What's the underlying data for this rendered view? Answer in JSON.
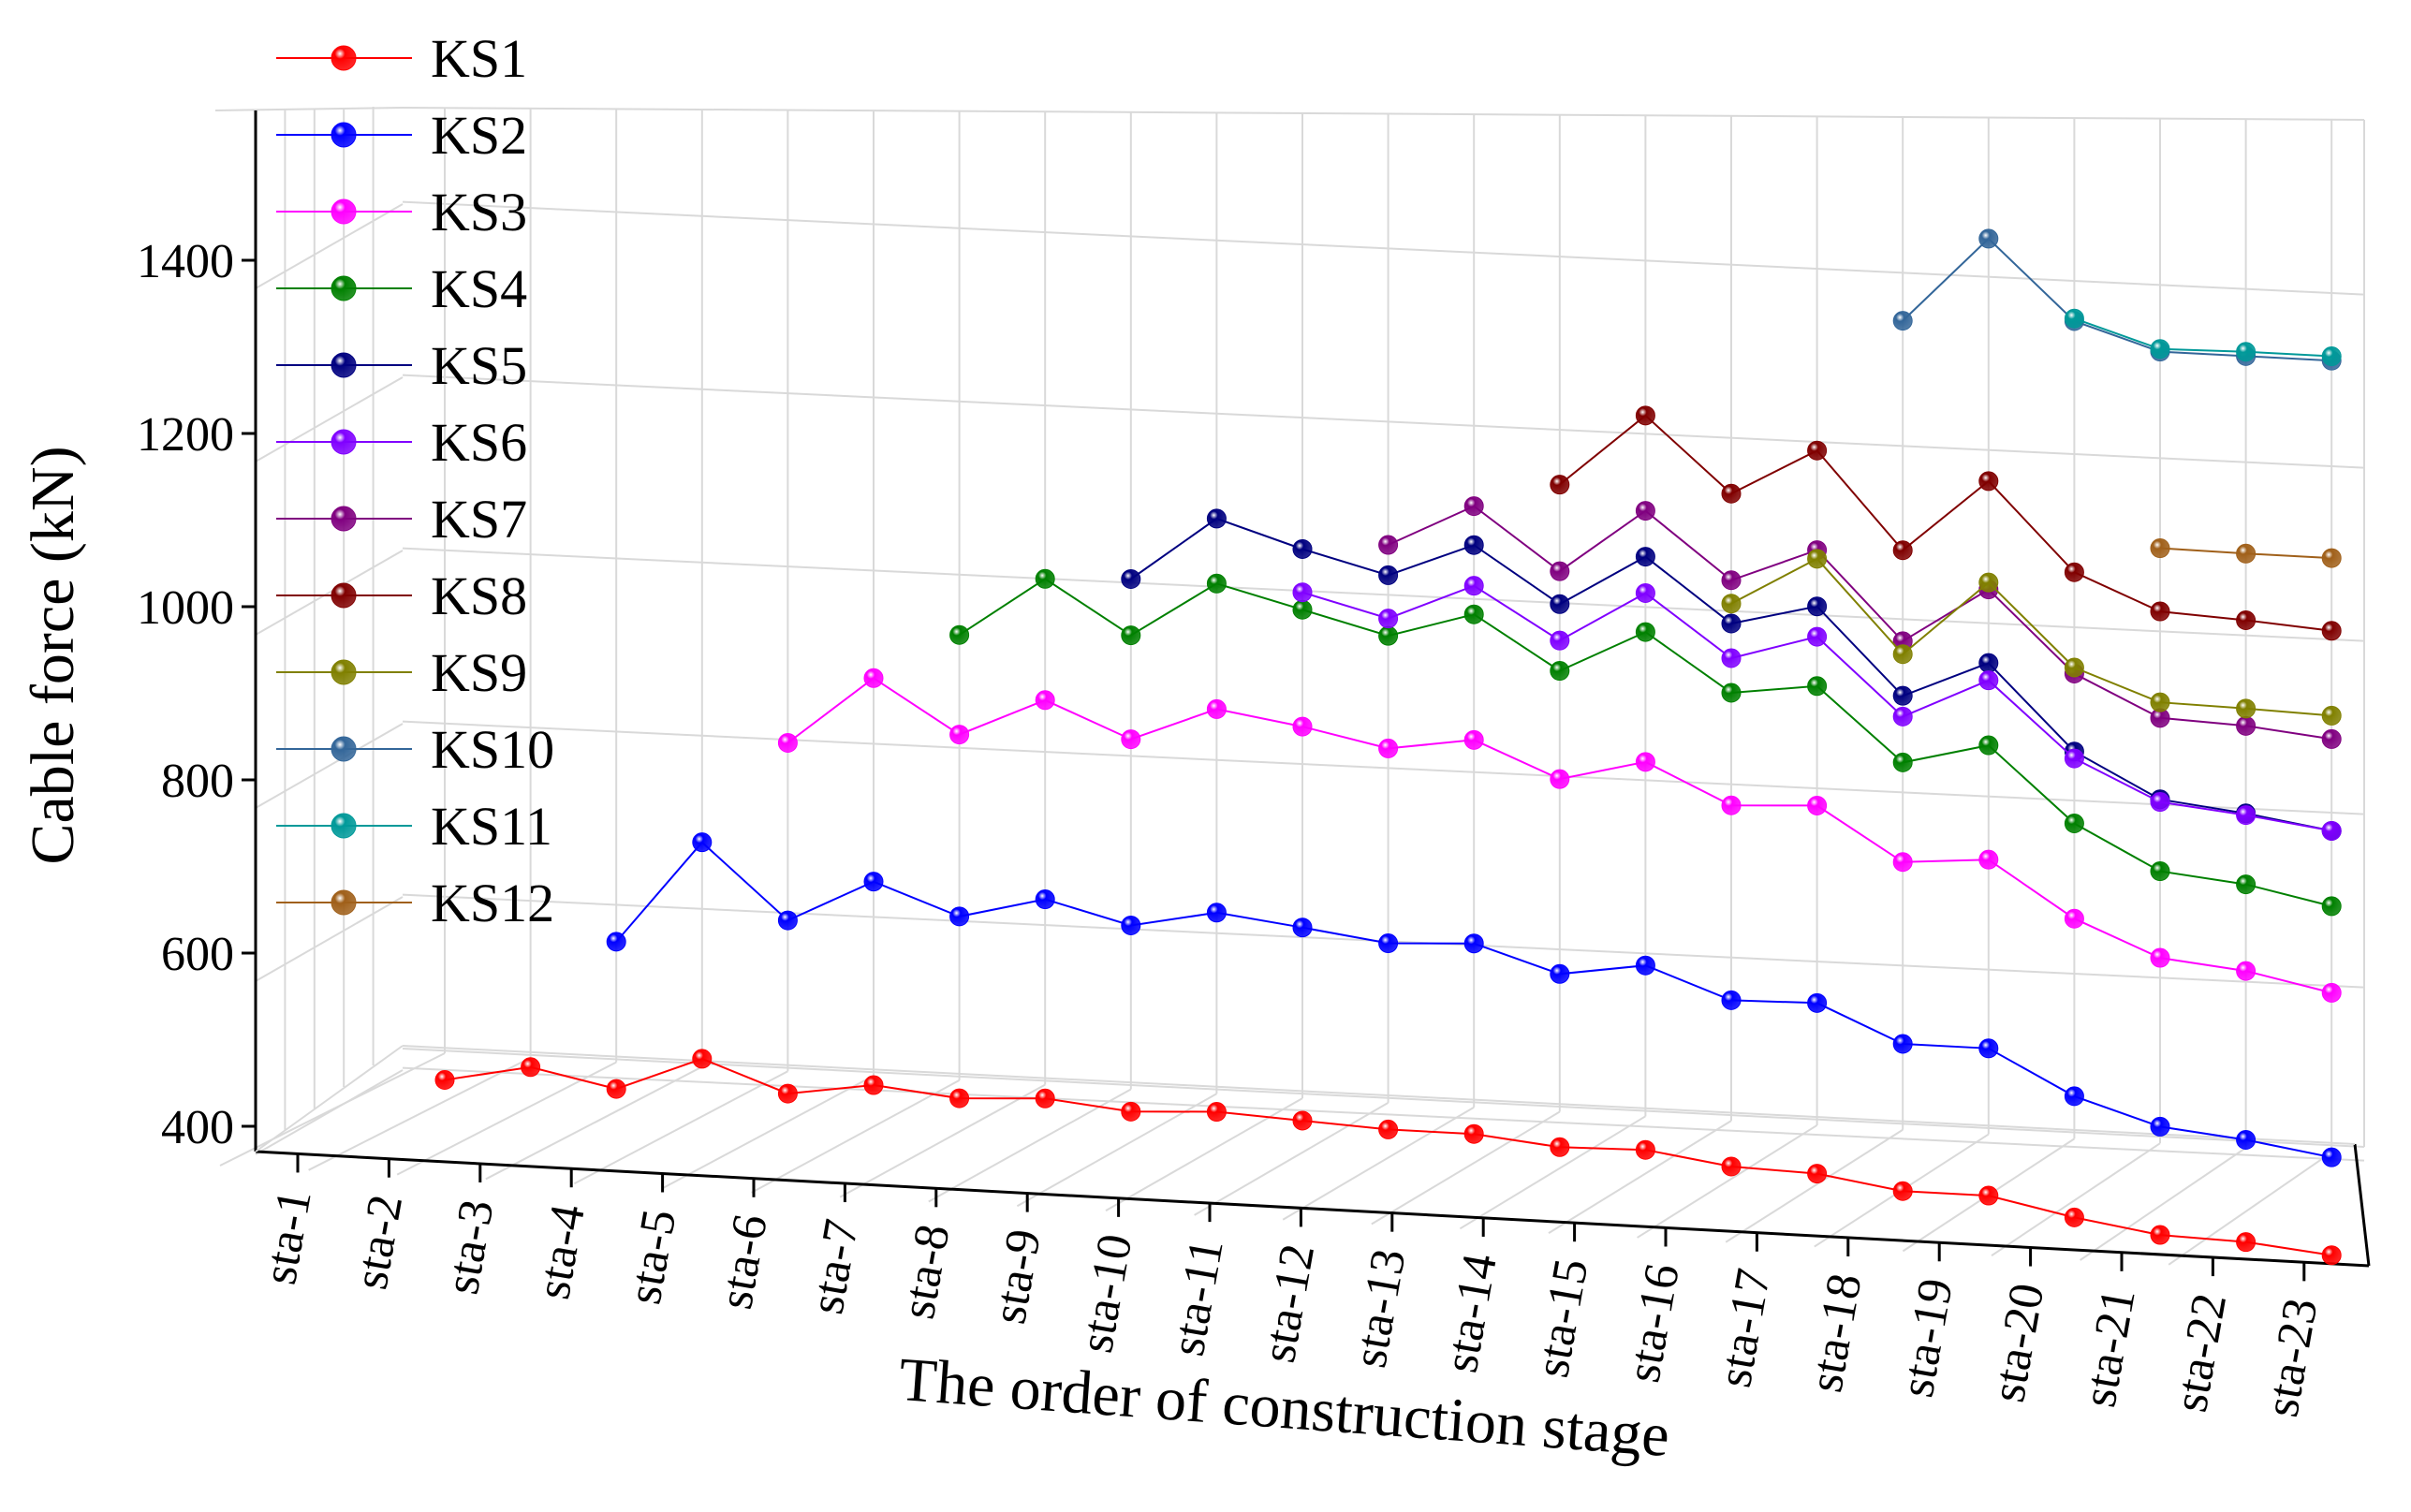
{
  "chart_data": {
    "type": "line",
    "title": "",
    "xlabel": "The order of construction stage",
    "ylabel": "Cable force (kN)",
    "ylim": [
      400,
      1500
    ],
    "yticks": [
      400,
      600,
      800,
      1000,
      1200,
      1400
    ],
    "grid": true,
    "legend_position": "top-left",
    "categories": [
      "sta-1",
      "sta-2",
      "sta-3",
      "sta-4",
      "sta-5",
      "sta-6",
      "sta-7",
      "sta-8",
      "sta-9",
      "sta-10",
      "sta-11",
      "sta-12",
      "sta-13",
      "sta-14",
      "sta-15",
      "sta-16",
      "sta-17",
      "sta-18",
      "sta-19",
      "sta-20",
      "sta-21",
      "sta-22",
      "sta-23"
    ],
    "series": [
      {
        "name": "KS1",
        "color": "#ff0000",
        "values": [
          380,
          400,
          380,
          420,
          385,
          400,
          390,
          395,
          385,
          390,
          385,
          380,
          380,
          370,
          372,
          358,
          355,
          340,
          340,
          320,
          305,
          302,
          292
        ]
      },
      {
        "name": "KS2",
        "color": "#0000ff",
        "values": [
          null,
          null,
          550,
          670,
          585,
          635,
          600,
          625,
          600,
          620,
          608,
          595,
          600,
          570,
          585,
          550,
          552,
          510,
          510,
          460,
          430,
          420,
          405
        ]
      },
      {
        "name": "KS3",
        "color": "#ff00ff",
        "values": [
          null,
          null,
          null,
          null,
          790,
          870,
          810,
          855,
          815,
          855,
          840,
          820,
          835,
          795,
          820,
          775,
          780,
          720,
          728,
          665,
          625,
          615,
          595
        ]
      },
      {
        "name": "KS4",
        "color": "#008000",
        "values": [
          null,
          null,
          null,
          null,
          null,
          null,
          925,
          995,
          935,
          1000,
          975,
          950,
          980,
          920,
          970,
          905,
          918,
          835,
          860,
          775,
          725,
          715,
          695
        ]
      },
      {
        "name": "KS5",
        "color": "#000080",
        "values": [
          null,
          null,
          null,
          null,
          null,
          null,
          null,
          null,
          1000,
          1075,
          1045,
          1020,
          1060,
          997,
          1057,
          985,
          1010,
          912,
          955,
          858,
          808,
          797,
          782
        ]
      },
      {
        "name": "KS6",
        "color": "#8000ff",
        "values": [
          null,
          null,
          null,
          null,
          null,
          null,
          null,
          null,
          null,
          null,
          995,
          970,
          1013,
          955,
          1015,
          945,
          975,
          888,
          935,
          850,
          805,
          795,
          782
        ]
      },
      {
        "name": "KS7",
        "color": "#800080",
        "values": [
          null,
          null,
          null,
          null,
          null,
          null,
          null,
          null,
          null,
          null,
          null,
          1055,
          1105,
          1035,
          1110,
          1035,
          1075,
          975,
          1040,
          948,
          902,
          898,
          888
        ]
      },
      {
        "name": "KS8",
        "color": "#800000",
        "values": [
          null,
          null,
          null,
          null,
          null,
          null,
          null,
          null,
          null,
          null,
          null,
          null,
          null,
          1135,
          1220,
          1135,
          1190,
          1080,
          1165,
          1065,
          1025,
          1020,
          1013
        ]
      },
      {
        "name": "KS9",
        "color": "#808000",
        "values": [
          null,
          null,
          null,
          null,
          null,
          null,
          null,
          null,
          null,
          null,
          null,
          null,
          null,
          null,
          null,
          1008,
          1065,
          960,
          1048,
          955,
          920,
          918,
          915
        ]
      },
      {
        "name": "KS10",
        "color": "#336699",
        "values": [
          null,
          null,
          null,
          null,
          null,
          null,
          null,
          null,
          null,
          null,
          null,
          null,
          null,
          null,
          null,
          null,
          null,
          1345,
          1445,
          1355,
          1325,
          1325,
          1325
        ]
      },
      {
        "name": "KS11",
        "color": "#009999",
        "values": [
          null,
          null,
          null,
          null,
          null,
          null,
          null,
          null,
          null,
          null,
          null,
          null,
          null,
          null,
          null,
          null,
          null,
          null,
          null,
          1358,
          1328,
          1330,
          1330
        ]
      },
      {
        "name": "KS12",
        "color": "#a0601a",
        "values": [
          null,
          null,
          null,
          null,
          null,
          null,
          null,
          null,
          null,
          null,
          null,
          null,
          null,
          null,
          null,
          null,
          null,
          null,
          null,
          null,
          1098,
          1097,
          1097
        ]
      }
    ]
  }
}
